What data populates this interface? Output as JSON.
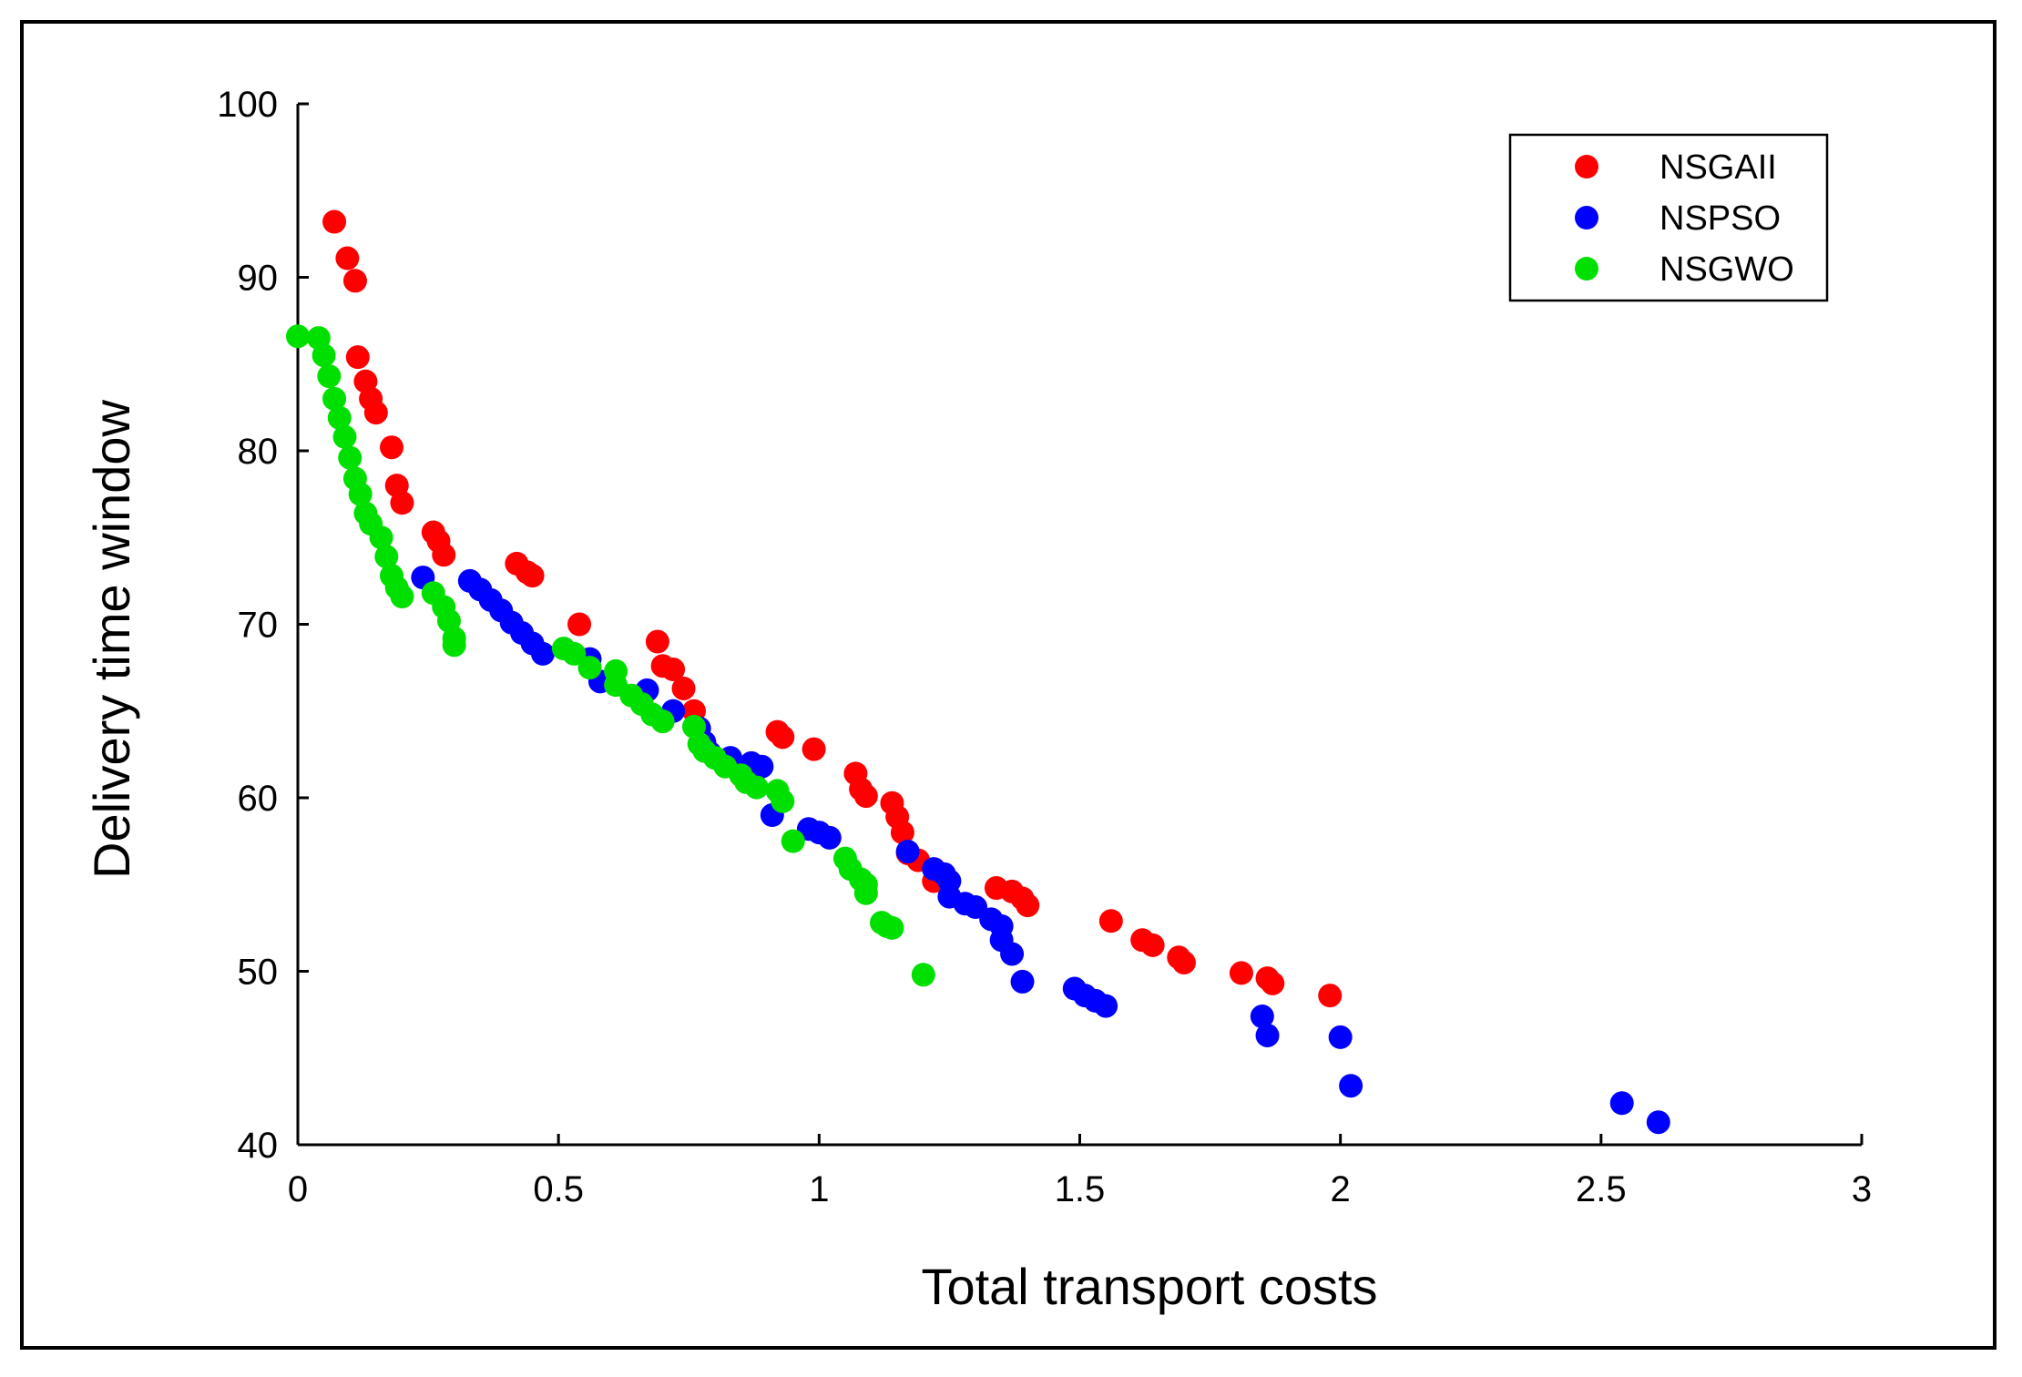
{
  "chart_data": {
    "type": "scatter",
    "title": "",
    "xlabel": "Total transport costs",
    "ylabel": "Delivery time window",
    "xlim": [
      0,
      3
    ],
    "ylim": [
      40,
      100
    ],
    "xticks": [
      0,
      0.5,
      1,
      1.5,
      2,
      2.5,
      3
    ],
    "xtick_labels": [
      "0",
      "0.5",
      "1",
      "1.5",
      "2",
      "2.5",
      "3"
    ],
    "yticks": [
      40,
      50,
      60,
      70,
      80,
      90,
      100
    ],
    "ytick_labels": [
      "40",
      "50",
      "60",
      "70",
      "80",
      "90",
      "100"
    ],
    "grid": false,
    "legend_position": "top-right",
    "series": [
      {
        "name": "NSGAII",
        "color": "#ff0000",
        "points": [
          [
            0.07,
            93.2
          ],
          [
            0.095,
            91.1
          ],
          [
            0.11,
            89.8
          ],
          [
            0.115,
            85.4
          ],
          [
            0.13,
            84.0
          ],
          [
            0.14,
            83.0
          ],
          [
            0.15,
            82.2
          ],
          [
            0.18,
            80.2
          ],
          [
            0.19,
            78.0
          ],
          [
            0.2,
            77.0
          ],
          [
            0.26,
            75.3
          ],
          [
            0.27,
            74.8
          ],
          [
            0.28,
            74.0
          ],
          [
            0.42,
            73.5
          ],
          [
            0.44,
            73.0
          ],
          [
            0.45,
            72.8
          ],
          [
            0.54,
            70.0
          ],
          [
            0.69,
            69.0
          ],
          [
            0.7,
            67.6
          ],
          [
            0.72,
            67.4
          ],
          [
            0.74,
            66.3
          ],
          [
            0.76,
            65.0
          ],
          [
            0.92,
            63.8
          ],
          [
            0.93,
            63.5
          ],
          [
            0.99,
            62.8
          ],
          [
            1.07,
            61.4
          ],
          [
            1.08,
            60.5
          ],
          [
            1.09,
            60.1
          ],
          [
            1.14,
            59.7
          ],
          [
            1.15,
            58.9
          ],
          [
            1.16,
            58.0
          ],
          [
            1.17,
            56.8
          ],
          [
            1.19,
            56.4
          ],
          [
            1.22,
            55.2
          ],
          [
            1.34,
            54.8
          ],
          [
            1.37,
            54.6
          ],
          [
            1.39,
            54.2
          ],
          [
            1.4,
            53.8
          ],
          [
            1.56,
            52.9
          ],
          [
            1.62,
            51.8
          ],
          [
            1.64,
            51.5
          ],
          [
            1.69,
            50.8
          ],
          [
            1.7,
            50.5
          ],
          [
            1.81,
            49.9
          ],
          [
            1.86,
            49.6
          ],
          [
            1.87,
            49.3
          ],
          [
            1.98,
            48.6
          ]
        ]
      },
      {
        "name": "NSPSO",
        "color": "#0000ff",
        "points": [
          [
            0.24,
            72.7
          ],
          [
            0.33,
            72.5
          ],
          [
            0.35,
            72.0
          ],
          [
            0.37,
            71.4
          ],
          [
            0.39,
            70.8
          ],
          [
            0.41,
            70.1
          ],
          [
            0.43,
            69.5
          ],
          [
            0.45,
            68.9
          ],
          [
            0.47,
            68.3
          ],
          [
            0.56,
            68.0
          ],
          [
            0.58,
            66.7
          ],
          [
            0.67,
            66.2
          ],
          [
            0.72,
            65.0
          ],
          [
            0.77,
            64.0
          ],
          [
            0.78,
            63.2
          ],
          [
            0.79,
            62.6
          ],
          [
            0.83,
            62.3
          ],
          [
            0.87,
            62.0
          ],
          [
            0.89,
            61.8
          ],
          [
            0.91,
            59.0
          ],
          [
            0.98,
            58.2
          ],
          [
            1.0,
            58.0
          ],
          [
            1.02,
            57.7
          ],
          [
            1.17,
            56.9
          ],
          [
            1.22,
            55.9
          ],
          [
            1.24,
            55.6
          ],
          [
            1.25,
            55.2
          ],
          [
            1.25,
            54.3
          ],
          [
            1.28,
            53.9
          ],
          [
            1.3,
            53.7
          ],
          [
            1.33,
            53.0
          ],
          [
            1.35,
            52.6
          ],
          [
            1.35,
            51.8
          ],
          [
            1.37,
            51.0
          ],
          [
            1.39,
            49.4
          ],
          [
            1.49,
            49.0
          ],
          [
            1.51,
            48.6
          ],
          [
            1.53,
            48.3
          ],
          [
            1.55,
            48.0
          ],
          [
            1.85,
            47.4
          ],
          [
            1.86,
            46.3
          ],
          [
            2.0,
            46.2
          ],
          [
            2.02,
            43.4
          ],
          [
            2.54,
            42.4
          ],
          [
            2.61,
            41.3
          ]
        ]
      },
      {
        "name": "NSGWO",
        "color": "#00e000",
        "points": [
          [
            0.0,
            86.6
          ],
          [
            0.04,
            86.5
          ],
          [
            0.05,
            85.5
          ],
          [
            0.06,
            84.3
          ],
          [
            0.07,
            83.0
          ],
          [
            0.08,
            81.9
          ],
          [
            0.09,
            80.8
          ],
          [
            0.1,
            79.6
          ],
          [
            0.11,
            78.4
          ],
          [
            0.12,
            77.5
          ],
          [
            0.13,
            76.4
          ],
          [
            0.14,
            75.8
          ],
          [
            0.16,
            75.0
          ],
          [
            0.17,
            73.9
          ],
          [
            0.18,
            72.8
          ],
          [
            0.19,
            72.1
          ],
          [
            0.2,
            71.6
          ],
          [
            0.26,
            71.8
          ],
          [
            0.28,
            71.0
          ],
          [
            0.29,
            70.2
          ],
          [
            0.3,
            69.2
          ],
          [
            0.3,
            68.8
          ],
          [
            0.51,
            68.6
          ],
          [
            0.53,
            68.3
          ],
          [
            0.56,
            67.5
          ],
          [
            0.61,
            67.3
          ],
          [
            0.61,
            66.5
          ],
          [
            0.64,
            65.9
          ],
          [
            0.66,
            65.4
          ],
          [
            0.68,
            64.8
          ],
          [
            0.7,
            64.4
          ],
          [
            0.76,
            64.1
          ],
          [
            0.77,
            63.1
          ],
          [
            0.78,
            62.7
          ],
          [
            0.8,
            62.3
          ],
          [
            0.82,
            61.8
          ],
          [
            0.85,
            61.3
          ],
          [
            0.86,
            60.9
          ],
          [
            0.88,
            60.6
          ],
          [
            0.92,
            60.4
          ],
          [
            0.93,
            59.8
          ],
          [
            0.95,
            57.5
          ],
          [
            1.05,
            56.5
          ],
          [
            1.06,
            55.9
          ],
          [
            1.08,
            55.3
          ],
          [
            1.09,
            55.0
          ],
          [
            1.09,
            54.5
          ],
          [
            1.12,
            52.8
          ],
          [
            1.13,
            52.6
          ],
          [
            1.14,
            52.5
          ],
          [
            1.2,
            49.8
          ]
        ]
      }
    ]
  }
}
